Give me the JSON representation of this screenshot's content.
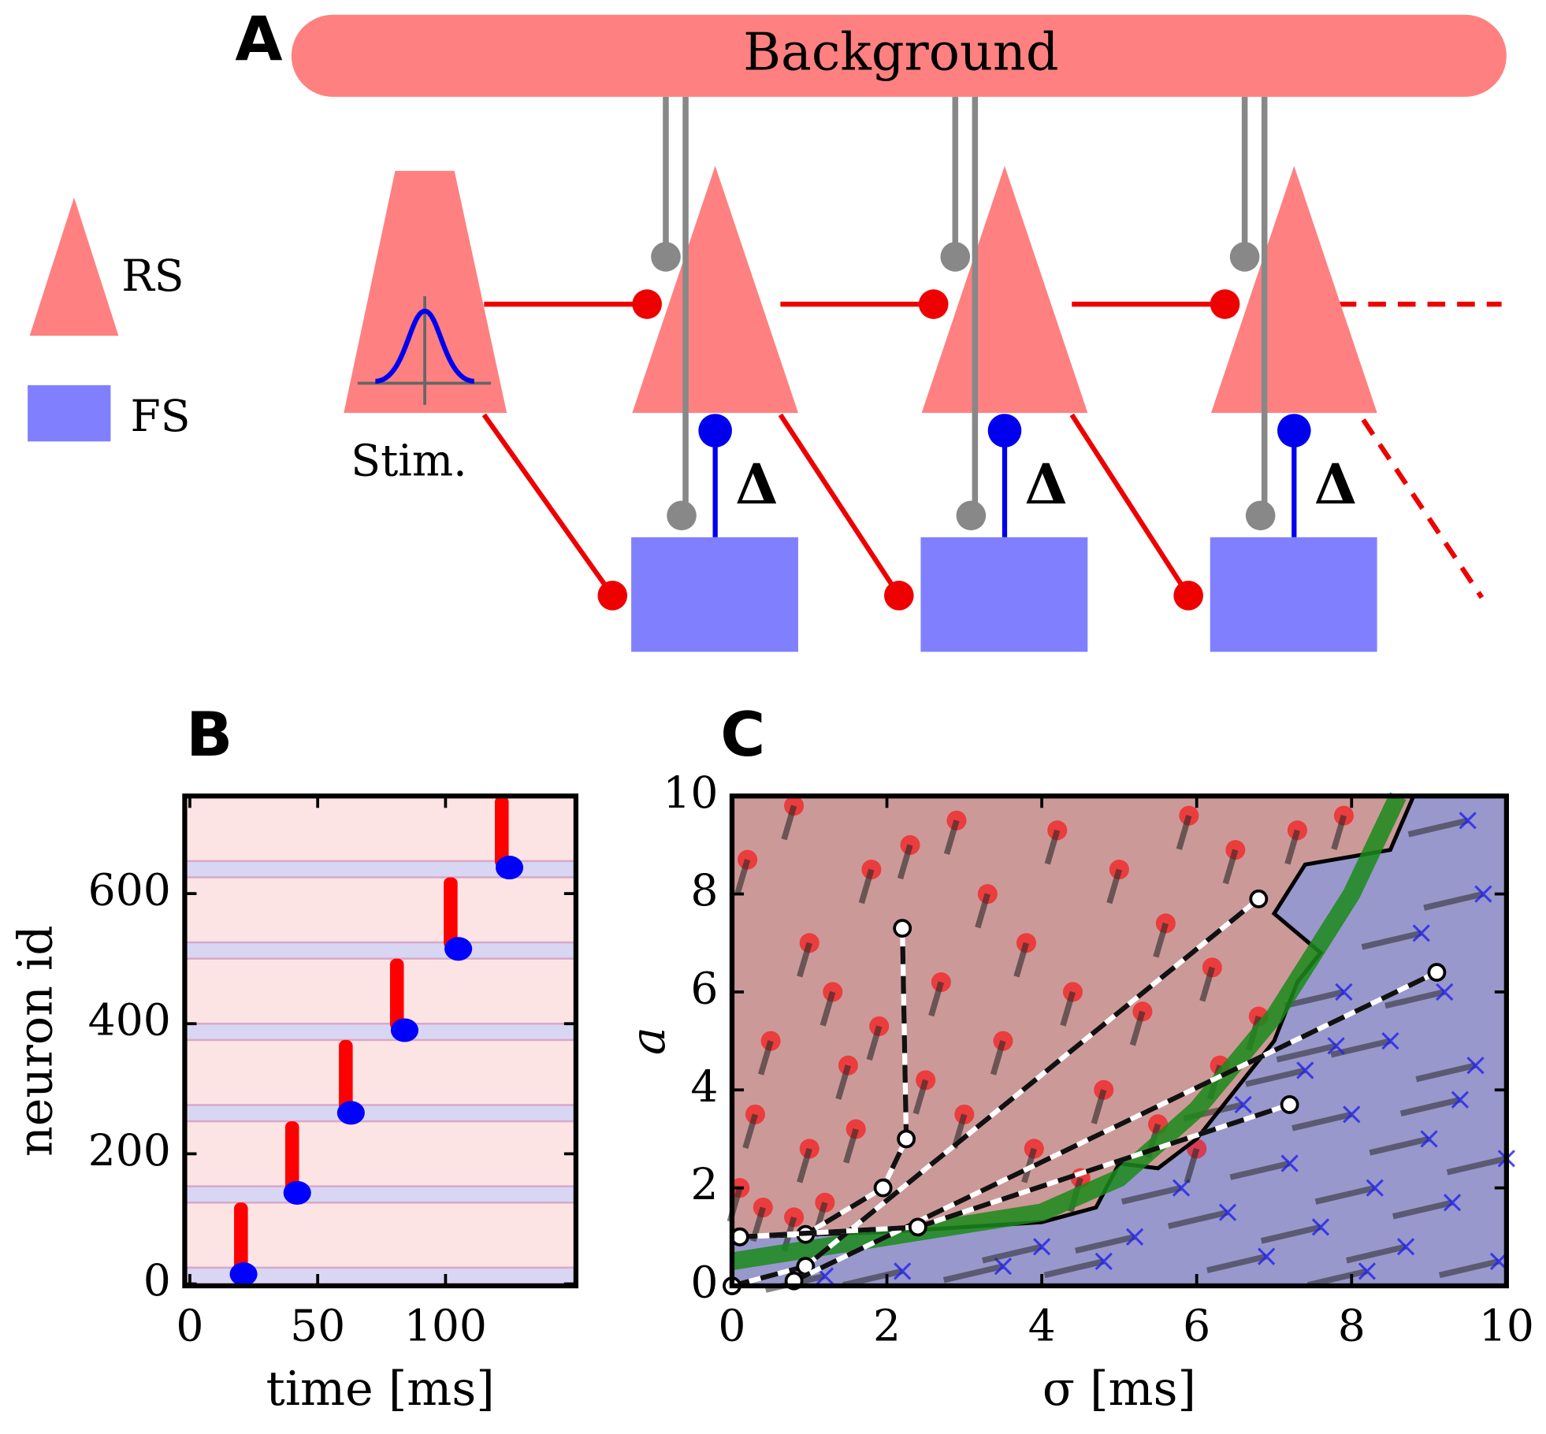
{
  "diagram": {
    "panel": "A",
    "background": "Background",
    "legend_rs": "RS",
    "legend_fs": "FS",
    "stim": "Stim.",
    "delays": [
      "Δ",
      "Δ",
      "Δ"
    ]
  },
  "chart_data": [
    {
      "type": "raster",
      "panel": "B",
      "xlabel": "time [ms]",
      "ylabel": "neuron id",
      "xlim": [
        -2,
        151
      ],
      "ylim": [
        -3,
        750
      ],
      "xticks": [
        0,
        50,
        100
      ],
      "yticks": [
        0,
        200,
        400,
        600
      ],
      "rs_color": "#ff0000",
      "fs_color": "#0000ff",
      "rs_x": [
        20,
        40,
        61,
        81,
        102,
        122
      ],
      "rs_y_low": [
        10,
        140,
        265,
        390,
        515,
        640
      ],
      "rs_y_high": [
        125,
        250,
        375,
        500,
        625,
        750
      ],
      "fs_x": [
        21,
        42,
        63,
        84,
        105,
        125
      ],
      "fs_y": [
        15,
        140,
        263,
        390,
        515,
        640
      ],
      "bands_low": [
        0,
        125,
        250,
        375,
        500,
        625
      ],
      "bands_high": [
        25,
        150,
        275,
        400,
        525,
        650
      ]
    },
    {
      "type": "scatter",
      "panel": "C",
      "xlabel": "σ [ms]",
      "ylabel": "a",
      "xlim": [
        0,
        10
      ],
      "ylim": [
        0,
        10
      ],
      "xticks": [
        0,
        2,
        4,
        6,
        8,
        10
      ],
      "yticks": [
        0,
        2,
        4,
        6,
        8,
        10
      ],
      "rs_points": {
        "color": "#ff0000",
        "x": [
          0.2,
          0.5,
          0.8,
          1,
          1.3,
          1.5,
          1.8,
          0.3,
          1,
          1.6,
          2.7,
          2.9,
          3.3,
          3.5,
          3.8,
          4.2,
          4.4,
          4.8,
          5,
          5.3,
          5.6,
          5.9,
          6.2,
          6.5,
          3,
          3.9,
          4.5,
          5.5,
          6.3,
          6.8,
          2.5,
          0.4,
          0.8,
          1.2,
          0.1,
          1.9,
          2.3,
          7.3,
          7.9,
          6
        ],
        "y": [
          8.7,
          5,
          9.8,
          7,
          6,
          4.5,
          8.5,
          3.5,
          2.8,
          3.2,
          6.2,
          9.5,
          8,
          5,
          7,
          9.3,
          6,
          4,
          8.5,
          5.6,
          7.4,
          9.6,
          6.5,
          8.9,
          3.5,
          2.8,
          2.2,
          3.3,
          4.5,
          5.5,
          4.2,
          1.6,
          1.4,
          1.7,
          2,
          5.3,
          9,
          9.3,
          9.6,
          2.8
        ]
      },
      "fs_points": {
        "color": "#2222ee",
        "x": [
          5.2,
          5.8,
          6.4,
          6.9,
          7.2,
          7.6,
          8,
          8.3,
          8.7,
          9,
          9.3,
          9.6,
          9.9,
          8.5,
          9.2,
          9.7,
          9.5,
          8.9,
          7.9,
          7.4,
          6.6,
          4.8,
          3.5,
          2.2,
          1.2,
          4,
          10,
          8.2,
          9.4,
          7.8
        ],
        "y": [
          1,
          2,
          1.5,
          0.6,
          2.5,
          1.2,
          3.5,
          2,
          0.8,
          3,
          1.7,
          4.5,
          0.5,
          5,
          6,
          8,
          9.5,
          7.2,
          6,
          4.4,
          3.7,
          0.5,
          0.4,
          0.3,
          0.2,
          0.8,
          2.6,
          0.3,
          3.8,
          4.9
        ]
      },
      "boundary": {
        "x": [
          0,
          2,
          4,
          4.7,
          5,
          5.5,
          6,
          6.6,
          7,
          7.3,
          7.6,
          7,
          7.4,
          8.5,
          8.8
        ],
        "y": [
          1,
          1.1,
          1.3,
          1.6,
          2.5,
          2.4,
          3,
          4.2,
          5,
          6.2,
          6.8,
          7.6,
          8.6,
          8.9,
          10
        ]
      },
      "fit": {
        "color": "#1a8a1a",
        "x": [
          0,
          2,
          4,
          5,
          6,
          7,
          8,
          8.6
        ],
        "y": [
          0.5,
          1,
          1.5,
          2.2,
          3.6,
          5.5,
          8,
          10
        ]
      },
      "paths": [
        {
          "x": [
            0.1,
            0.95,
            1.95,
            2.25,
            2.2
          ],
          "y": [
            1,
            1.05,
            2,
            3,
            7.3
          ]
        },
        {
          "x": [
            0,
            0.95,
            6.8
          ],
          "y": [
            0,
            0.4,
            7.9
          ]
        },
        {
          "x": [
            0.8,
            9.1
          ],
          "y": [
            0.1,
            6.4
          ]
        },
        {
          "x": [
            0.1,
            2.4,
            7.2
          ],
          "y": [
            1,
            1.2,
            3.7
          ]
        }
      ]
    }
  ]
}
